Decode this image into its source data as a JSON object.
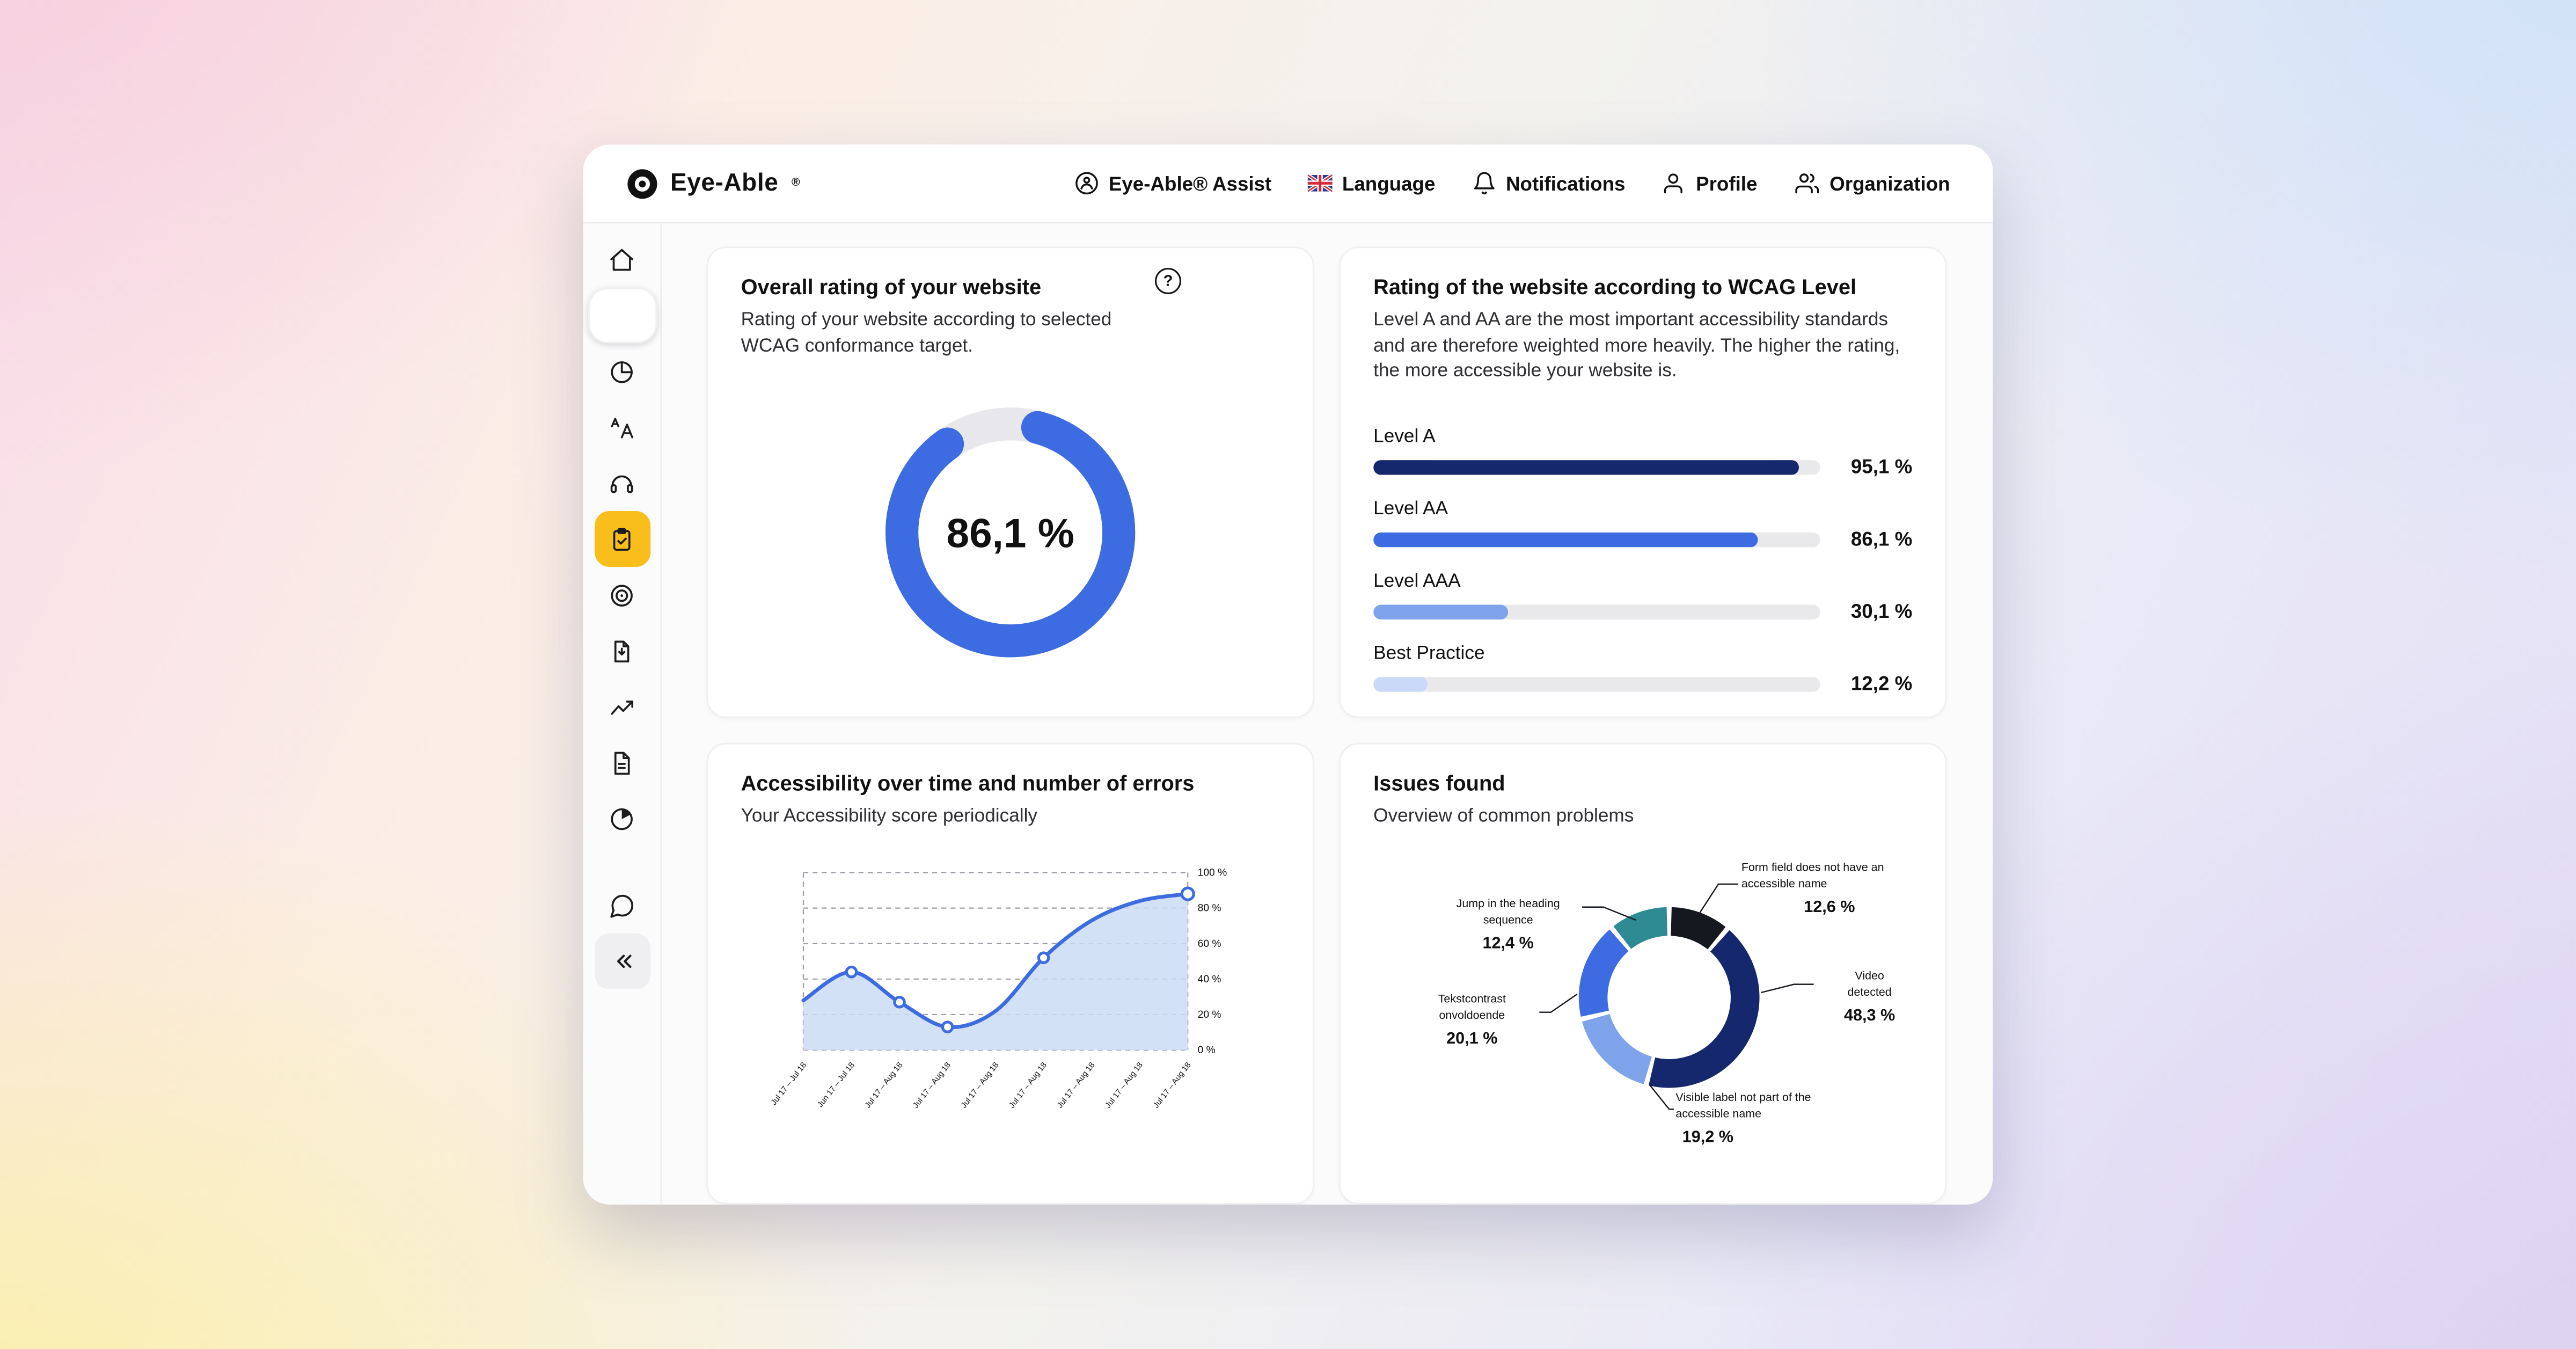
{
  "icons": {
    "help_glyph": "?"
  },
  "header": {
    "brand": "Eye-Able",
    "brand_mark": "®",
    "nav": [
      {
        "label": "Eye-Able® Assist",
        "icon": "assist"
      },
      {
        "label": "Language",
        "icon": "uk-flag"
      },
      {
        "label": "Notifications",
        "icon": "bell"
      },
      {
        "label": "Profile",
        "icon": "user"
      },
      {
        "label": "Organization",
        "icon": "users"
      }
    ]
  },
  "sidebar": {
    "items": [
      {
        "icon": "home"
      },
      {
        "icon": "accessibility-assist",
        "style": "card"
      },
      {
        "icon": "pie-chart"
      },
      {
        "icon": "translate"
      },
      {
        "icon": "audio-headset"
      },
      {
        "icon": "report-clipboard",
        "active": true
      },
      {
        "icon": "target"
      },
      {
        "icon": "pdf-export"
      },
      {
        "icon": "trend-chart"
      },
      {
        "icon": "document-report"
      },
      {
        "icon": "pie-analytics"
      },
      {
        "icon": "chat-support"
      },
      {
        "icon": "collapse-sidebar"
      }
    ]
  },
  "cards": {
    "overall": {
      "title": "Overall rating of your website",
      "subtitle": "Rating of your website according to selected WCAG conformance target.",
      "value_label": "86,1 %",
      "percent": 86.1,
      "color": "#3D6BE1",
      "track_color": "#E8E8EC"
    },
    "wcag": {
      "title": "Rating of the website according to WCAG Level",
      "subtitle": "Level A and AA are the most important accessibility standards and are therefore weighted more heavily. The higher the rating, the more accessible your website is.",
      "bars": [
        {
          "label": "Level A",
          "value": "95,1 %",
          "percent": 95.1,
          "color": "#15286D"
        },
        {
          "label": "Level AA",
          "value": "86,1 %",
          "percent": 86.1,
          "color": "#3D6BE1"
        },
        {
          "label": "Level AAA",
          "value": "30,1 %",
          "percent": 30.1,
          "color": "#7FA3EA"
        },
        {
          "label": "Best Practice",
          "value": "12,2 %",
          "percent": 12.2,
          "color": "#C9D9F7"
        }
      ]
    },
    "timeline": {
      "title": "Accessibility over time and number of errors",
      "subtitle": "Your Accessibility score periodically",
      "chart": {
        "type": "line",
        "x_labels": [
          "Jul 17 – Jul 18",
          "Jun 17 – Jul 18",
          "Jul 17 – Aug 18",
          "Jul 17 – Aug 18",
          "Jul 17 – Aug 18",
          "Jul 17 – Aug 18",
          "Jul 17 – Aug 18",
          "Jul 17 – Aug 18",
          "Jul 17 – Aug 18"
        ],
        "values": [
          28,
          44,
          27,
          13,
          22,
          52,
          73,
          84,
          88
        ],
        "marker_indices": [
          1,
          2,
          3,
          5,
          8
        ],
        "y_ticks": [
          "100 %",
          "80 %",
          "60 %",
          "40 %",
          "20 %",
          "0 %"
        ],
        "ylim": [
          0,
          100
        ],
        "line_color": "#3D6BE1",
        "area_color": "#CBDCF5",
        "grid_color": "#9B9BA6"
      }
    },
    "issues": {
      "title": "Issues found",
      "subtitle": "Overview of common problems",
      "chart_type": "donut",
      "slices": [
        {
          "label": "Form field does not have an accessible name",
          "value": "12,6 %",
          "percent": 12.6,
          "color": "#15181E"
        },
        {
          "label": "Video detected",
          "value": "48,3 %",
          "percent": 48.3,
          "color": "#15286D"
        },
        {
          "label": "Visible label not part of the accessible name",
          "value": "19,2 %",
          "percent": 19.2,
          "color": "#7FA3EA"
        },
        {
          "label": "Tekstcontrast onvoldoende",
          "value": "20,1 %",
          "percent": 20.1,
          "color": "#3D6BE1"
        },
        {
          "label": "Jump in the heading sequence",
          "value": "12,4 %",
          "percent": 12.4,
          "color": "#2E8A93"
        }
      ],
      "draw_order": [
        0,
        1,
        2,
        3,
        4
      ]
    }
  }
}
